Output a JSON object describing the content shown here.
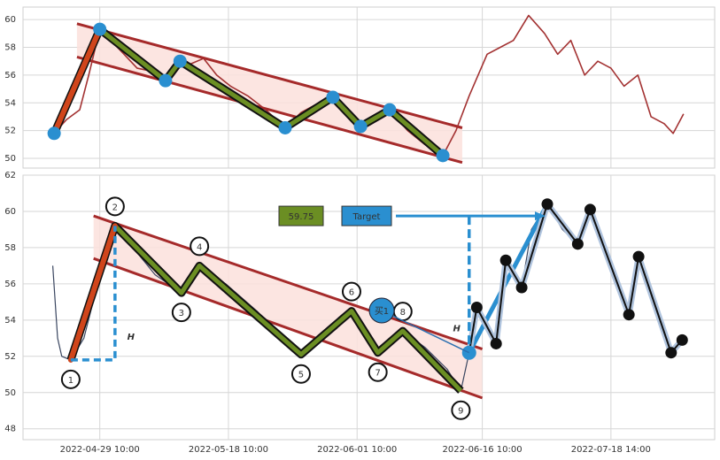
{
  "chart_data": [
    {
      "type": "line",
      "xlim": [
        0,
        100
      ],
      "ylim": [
        49.3,
        60.9
      ],
      "yticks": [
        50,
        52,
        54,
        56,
        58,
        60
      ],
      "grid": true,
      "series": [
        {
          "color": "#a33232",
          "x": [
            4.5,
            6.3,
            8.2,
            9.5,
            11.1,
            12.7,
            14.6,
            16.5,
            18.4,
            20.6,
            22.7,
            24.2,
            26.1,
            28,
            30,
            32.5,
            35.1,
            37.9,
            40.2,
            42.8,
            44.8,
            46.9,
            48.8,
            51.1,
            53,
            55.6,
            58.1,
            60.7,
            62.6,
            64.5,
            67.1,
            69,
            70.9,
            73.1,
            75.4,
            77.3,
            79.2,
            81.2,
            83.1,
            85,
            86.9,
            88.9,
            90.8,
            92.7,
            94,
            95.5
          ],
          "values": [
            51.8,
            52.8,
            53.5,
            56,
            59.3,
            58.5,
            57.5,
            56.5,
            56.3,
            55.6,
            57,
            56.8,
            57.2,
            56,
            55.2,
            54.5,
            53.5,
            52.2,
            53.3,
            54,
            54.4,
            53.5,
            52.3,
            53,
            53.5,
            52,
            51,
            50.2,
            52,
            54.5,
            57.5,
            58,
            58.5,
            60.3,
            59,
            57.5,
            58.5,
            56,
            57,
            56.5,
            55.2,
            56,
            53,
            52.5,
            51.8,
            53.2
          ]
        }
      ],
      "zigzag": {
        "color": "#6b8e23",
        "first_leg_color": "#d0451b",
        "marker_color": "#2a8fd0",
        "x": [
          4.5,
          11.1,
          20.6,
          22.7,
          37.9,
          44.8,
          48.8,
          53,
          60.7
        ],
        "values": [
          51.8,
          59.3,
          55.6,
          57,
          52.2,
          54.4,
          52.3,
          53.5,
          50.2
        ]
      },
      "channel": {
        "color": "#a52a2a",
        "fill": "#fbe1dc",
        "upper": {
          "x": [
            7.8,
            63.5
          ],
          "values": [
            59.7,
            52.2
          ]
        },
        "lower": {
          "x": [
            7.8,
            63.5
          ],
          "values": [
            57.3,
            49.7
          ]
        }
      }
    },
    {
      "type": "line",
      "xlim": [
        0,
        100
      ],
      "ylim": [
        47.4,
        62
      ],
      "yticks": [
        48,
        50,
        52,
        54,
        56,
        58,
        60,
        62
      ],
      "grid": true,
      "xticks": [
        {
          "value": 11.1,
          "label": "2022-04-29 10:00"
        },
        {
          "value": 29.7,
          "label": "2022-05-18 10:00"
        },
        {
          "value": 48.3,
          "label": "2022-06-01 10:00"
        },
        {
          "value": 66.4,
          "label": "2022-06-16 10:00"
        },
        {
          "value": 85,
          "label": "2022-07-18 14:00"
        }
      ],
      "series": [
        {
          "color": "#3a4660",
          "x": [
            4.3,
            5,
            5.6,
            6.9,
            8.8,
            10.8,
            13.3,
            15.9,
            19.1,
            22.9,
            25.5,
            29.3,
            33.8,
            37.6,
            40.2,
            44,
            47.5,
            51.3,
            54.9,
            58.1,
            61.3,
            63.3,
            64.5,
            65.6,
            68.4,
            69.8,
            72.1,
            73.5,
            75.8,
            78,
            80.2,
            82,
            85,
            87.6,
            89,
            91.4,
            93.7,
            95.3
          ],
          "values": [
            57,
            53,
            52,
            51.8,
            53,
            56,
            59.2,
            58,
            56.5,
            55.5,
            57,
            56,
            54.5,
            53,
            52.1,
            53.5,
            54.5,
            52.2,
            53.4,
            52.5,
            51.3,
            50.1,
            52.2,
            54.7,
            52.7,
            57.3,
            55.8,
            59,
            60.4,
            59,
            58.2,
            60.1,
            57,
            54.3,
            57.5,
            55,
            52.2,
            52.9
          ]
        }
      ],
      "zigzag": {
        "color": "#6b8e23",
        "first_leg_color": "#d0451b",
        "label_color": "#2a8fd0",
        "x": [
          6.9,
          13.3,
          22.9,
          25.5,
          40.2,
          47.5,
          51.3,
          54.9,
          63.3
        ],
        "values": [
          51.8,
          59.2,
          55.5,
          57,
          52.1,
          54.5,
          52.2,
          53.4,
          50.1
        ],
        "labels": [
          "1",
          "2",
          "3",
          "4",
          "5",
          "6",
          "7",
          "8",
          "9"
        ]
      },
      "channel": {
        "color": "#a52a2a",
        "fill": "#fbe1dc",
        "upper": {
          "x": [
            10.2,
            66.4
          ],
          "values": [
            59.75,
            52.4
          ]
        },
        "lower": {
          "x": [
            10.2,
            66.4
          ],
          "values": [
            57.4,
            49.7
          ]
        }
      },
      "projection": {
        "color": "#111111",
        "outline": "#b0c4de",
        "lead_color": "#2a8fd0",
        "x": [
          64.5,
          65.6,
          68.4,
          69.8,
          72.1,
          75.8,
          80.2,
          82,
          87.6,
          89,
          93.7,
          95.3
        ],
        "values": [
          52.2,
          54.7,
          52.7,
          57.3,
          55.8,
          60.4,
          58.2,
          60.1,
          54.3,
          57.5,
          52.2,
          52.9
        ]
      },
      "target": {
        "value": 59.75,
        "label": "Target"
      },
      "buy_label": "买1",
      "h_label": "H"
    }
  ]
}
